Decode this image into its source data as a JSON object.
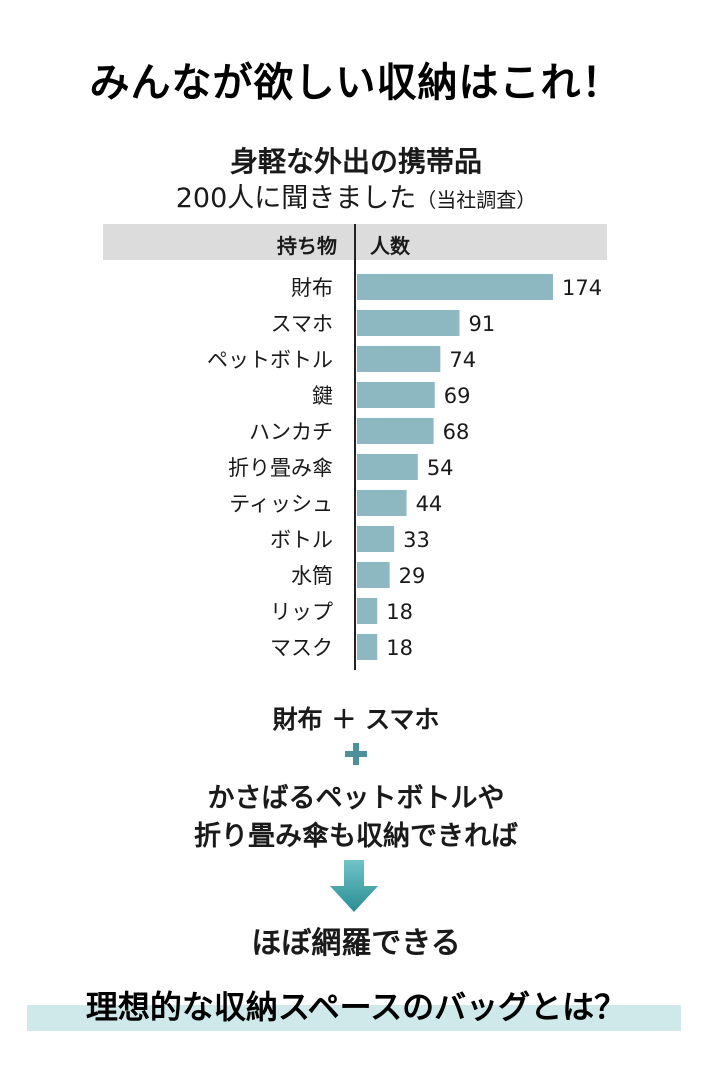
{
  "title": "みんなが欲しい収納はこれ！",
  "subtitle1": "身軽な外出の携帯品",
  "subtitle2": "200人に聞きました",
  "subtitle2_note": "（当社調査）",
  "colors": {
    "bar": "#8db8c2",
    "accent": "#3f9ba3",
    "header_bg": "#dcdcdc",
    "highlight": "#cfe9ea"
  },
  "chart_data": {
    "type": "bar",
    "orientation": "horizontal",
    "title": "身軽な外出の携帯品",
    "xlabel": "人数",
    "ylabel": "持ち物",
    "categories": [
      "財布",
      "スマホ",
      "ペットボトル",
      "鍵",
      "ハンカチ",
      "折り畳み傘",
      "ティッシュ",
      "ボトル",
      "水筒",
      "リップ",
      "マスク"
    ],
    "values": [
      174,
      91,
      74,
      69,
      68,
      54,
      44,
      33,
      29,
      18,
      18
    ],
    "xlim": [
      0,
      174
    ]
  },
  "summary": {
    "line1": "財布 ＋ スマホ",
    "line2a": "かさばるペットボトルや",
    "line2b": "折り畳み傘も収納できれば",
    "line3": "ほぼ網羅できる",
    "headline": "理想的な収納スペースのバッグとは？"
  }
}
